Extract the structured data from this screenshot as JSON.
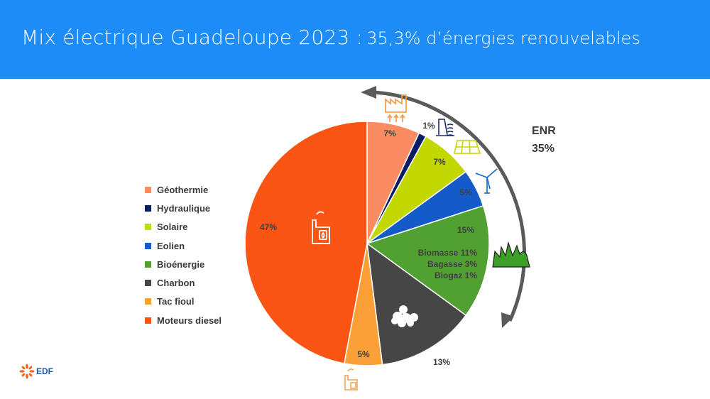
{
  "title": {
    "main": "Mix électrique Guadeloupe 2023 :",
    "sub": "35,3% d’énergies renouvelables"
  },
  "chart_data": {
    "type": "pie",
    "title": "Mix électrique Guadeloupe 2023 : 35,3% d’énergies renouvelables",
    "slices": [
      {
        "name": "Géothermie",
        "value": 7,
        "label": "7%",
        "color": "#fa8c64",
        "icon": "geothermal-plant-icon"
      },
      {
        "name": "Hydraulique",
        "value": 1,
        "label": "1%",
        "color": "#0a1e64",
        "icon": "dam-icon"
      },
      {
        "name": "Solaire",
        "value": 7,
        "label": "7%",
        "color": "#c3d700",
        "icon": "solar-panel-icon"
      },
      {
        "name": "Eolien",
        "value": 5,
        "label": "5%",
        "color": "#145ac8",
        "icon": "wind-turbine-icon"
      },
      {
        "name": "Bioénergie",
        "value": 15,
        "label": "15%",
        "color": "#50a032",
        "icon": "grass-icon",
        "details": [
          "Biomasse 11%",
          "Bagasse 3%",
          "Biogaz 1%"
        ]
      },
      {
        "name": "Charbon",
        "value": 13,
        "label": "13%",
        "color": "#464646",
        "icon": "coal-icon"
      },
      {
        "name": "Tac fioul",
        "value": 5,
        "label": "5%",
        "color": "#faa037",
        "icon": "fuel-plant-icon"
      },
      {
        "name": "Moteurs diesel",
        "value": 47,
        "label": "47%",
        "color": "#fa5514",
        "icon": "diesel-plant-icon"
      }
    ],
    "legend_position": "left",
    "annotation": {
      "line1": "ENR",
      "line2": "35%"
    }
  },
  "logo": {
    "text": "EDF",
    "icon": "edf-flower-icon",
    "color": "#fa6414"
  }
}
